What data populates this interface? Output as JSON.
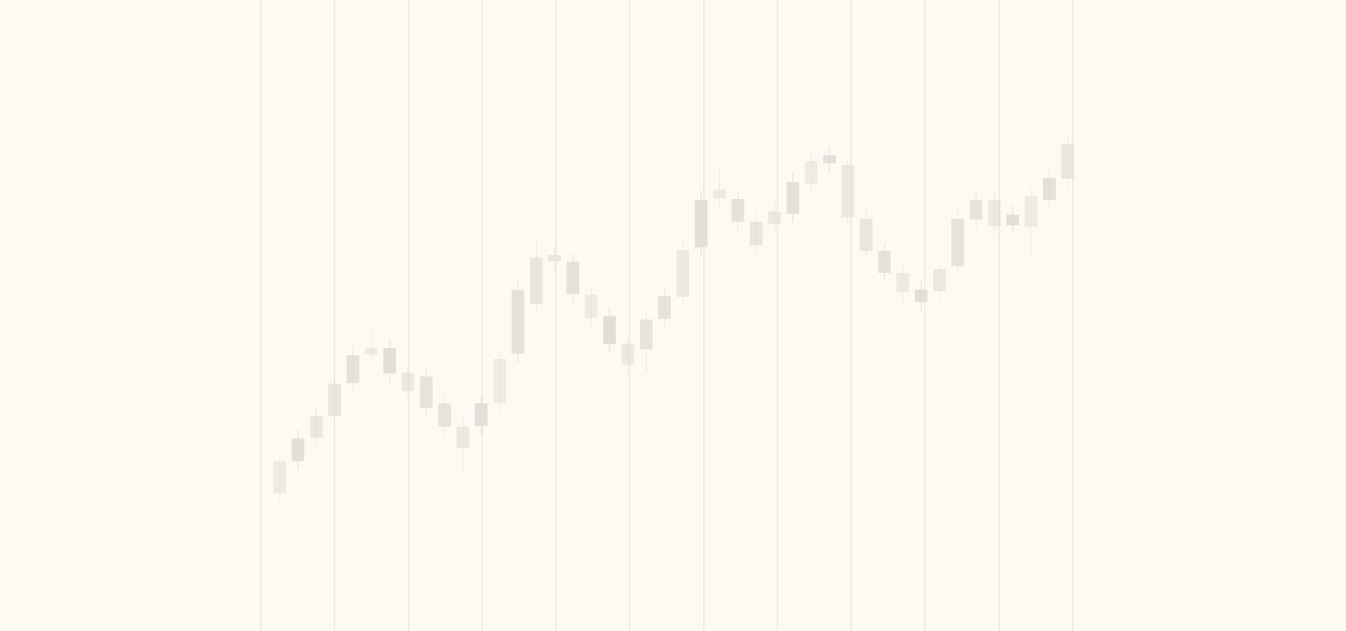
{
  "chart_data": {
    "type": "candlestick",
    "color": "#e3ded7",
    "grid": true,
    "ylim": [
      -8,
      78.5
    ],
    "yticks": [
      0,
      10,
      20,
      30,
      40,
      50,
      60,
      70
    ],
    "open": [
      10.9,
      15.3,
      18.5,
      21.5,
      26,
      29.9,
      30.8,
      27.4,
      26.9,
      23.2,
      20,
      20.1,
      23.3,
      30,
      36.8,
      42.7,
      42.6,
      38.1,
      35.2,
      31.4,
      30.6,
      34.8,
      37.8,
      44.6,
      51.3,
      51.2,
      48.1,
      47.8,
      49.2,
      53.3,
      56.1,
      55.9,
      48.5,
      44.1,
      41.1,
      38.8,
      38.6,
      42,
      48.4,
      51.1,
      49.1,
      47.4,
      51.1,
      54
    ],
    "close": [
      15.3,
      18.4,
      21.5,
      25.9,
      29.8,
      30.8,
      27.3,
      24.9,
      22.6,
      20,
      17.1,
      23.2,
      29.3,
      38.7,
      43.2,
      43.5,
      38.2,
      34.9,
      31.3,
      28.5,
      34.7,
      37.9,
      44.2,
      51.1,
      52.5,
      48.1,
      44.9,
      49.5,
      53.5,
      56.4,
      57.2,
      48.7,
      44.1,
      41.1,
      38.4,
      37.1,
      41.6,
      48.5,
      51.1,
      47.5,
      47.6,
      51.6,
      54.1,
      58.8
    ],
    "high": [
      16.5,
      19.6,
      22.7,
      27.1,
      31,
      33.2,
      32,
      28.6,
      28.1,
      24.4,
      21.2,
      24.4,
      30.5,
      39.9,
      46,
      44.7,
      43.8,
      39.3,
      36.4,
      32.6,
      35.9,
      39.1,
      45.4,
      52.3,
      55.3,
      52.4,
      49.3,
      50.7,
      54.7,
      57.6,
      58.4,
      57.1,
      49.7,
      45.3,
      42.3,
      40,
      42.8,
      49.7,
      52.3,
      52.3,
      50.3,
      52.8,
      55.3,
      60
    ],
    "low": [
      9.7,
      14.1,
      17.3,
      20.3,
      24.8,
      28.7,
      26.1,
      23.7,
      21.4,
      18.8,
      13.5,
      18.9,
      22.1,
      28.8,
      35.6,
      41.5,
      37,
      33.7,
      30.1,
      27.3,
      27.5,
      33.6,
      36.6,
      43.4,
      50.1,
      46.9,
      43.7,
      46.6,
      48,
      52.1,
      54.9,
      47.5,
      42.9,
      39.9,
      37.2,
      35.9,
      37.4,
      40.8,
      47.2,
      46.3,
      46.4,
      43.6,
      49.9,
      52.8
    ]
  }
}
